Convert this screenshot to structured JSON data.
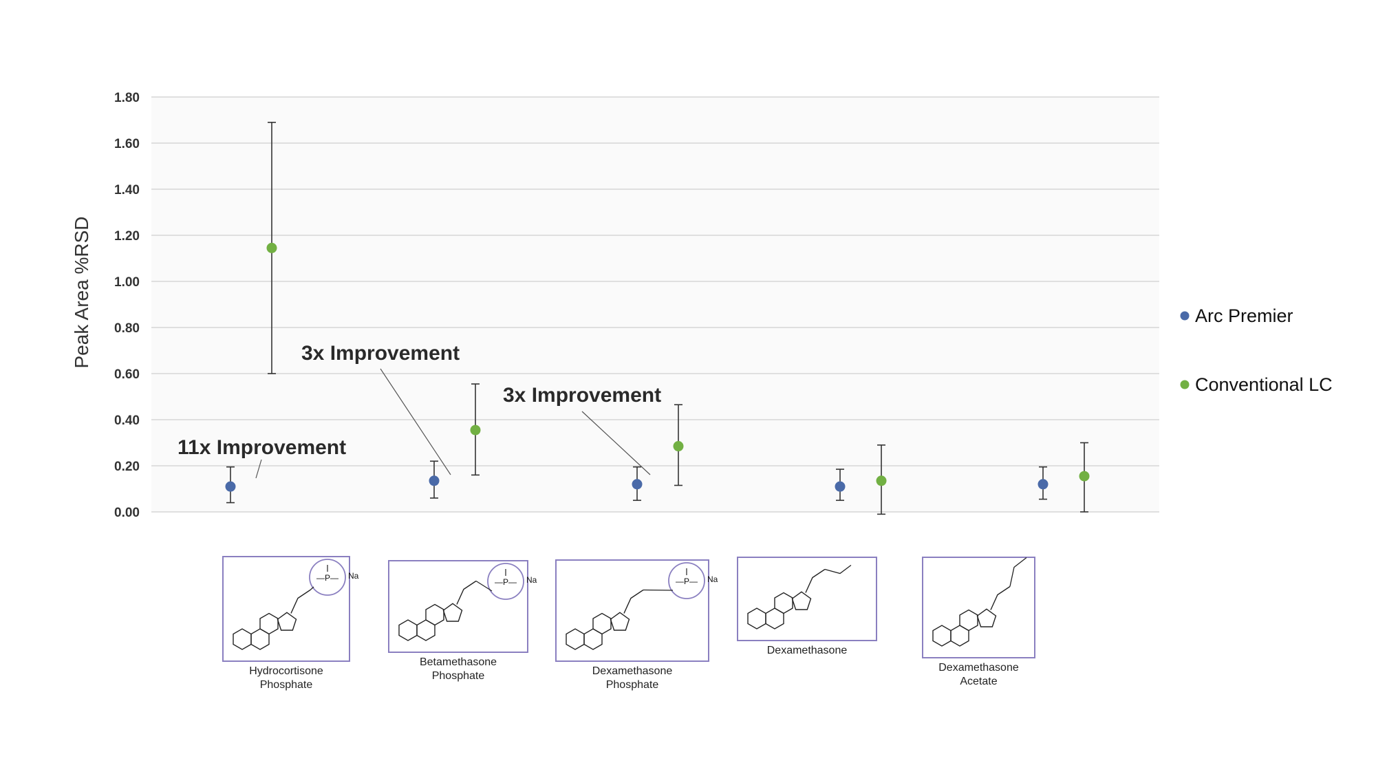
{
  "chart_data": {
    "type": "scatter",
    "xlabel": "",
    "ylabel": "Peak Area %RSD",
    "ylim": [
      0,
      1.8
    ],
    "yticks": [
      "0.00",
      "0.20",
      "0.40",
      "0.60",
      "0.80",
      "1.00",
      "1.20",
      "1.40",
      "1.60",
      "1.80"
    ],
    "grid": true,
    "legend_position": "right",
    "categories": [
      "Hydrocortisone Phosphate",
      "Betamethasone Phosphate",
      "Dexamethasone Phosphate",
      "Dexamethasone",
      "Dexamethasone Acetate"
    ],
    "series": [
      {
        "name": "Arc Premier",
        "color": "#4a6aa8",
        "values": [
          0.11,
          0.135,
          0.12,
          0.11,
          0.12
        ],
        "err_low": [
          0.04,
          0.06,
          0.05,
          0.05,
          0.055
        ],
        "err_high": [
          0.195,
          0.22,
          0.195,
          0.185,
          0.195
        ]
      },
      {
        "name": "Conventional LC",
        "color": "#72b043",
        "values": [
          1.145,
          0.355,
          0.285,
          0.135,
          0.155
        ],
        "err_low": [
          0.6,
          0.16,
          0.115,
          -0.01,
          0.0
        ],
        "err_high": [
          1.69,
          0.555,
          0.465,
          0.29,
          0.3
        ]
      }
    ],
    "annotations": [
      {
        "text": "11x Improvement",
        "category": 0
      },
      {
        "text": "3x Improvement",
        "category": 1
      },
      {
        "text": "3x Improvement",
        "category": 2
      }
    ],
    "structures": [
      {
        "name": "hydrocortisone-phosphate",
        "caption_lines": [
          "Hydrocortisone",
          "Phosphate"
        ],
        "substituent": "phosphate",
        "counterion": "Na"
      },
      {
        "name": "betamethasone-phosphate",
        "caption_lines": [
          "Betamethasone",
          "Phosphate"
        ],
        "substituent": "phosphate",
        "counterion": "Na"
      },
      {
        "name": "dexamethasone-phosphate",
        "caption_lines": [
          "Dexamethasone",
          "Phosphate"
        ],
        "substituent": "phosphate",
        "counterion": "Na"
      },
      {
        "name": "dexamethasone",
        "caption_lines": [
          "Dexamethasone"
        ],
        "substituent": "hydroxyl",
        "counterion": ""
      },
      {
        "name": "dexamethasone-acetate",
        "caption_lines": [
          "Dexamethasone",
          "Acetate"
        ],
        "substituent": "acetate",
        "counterion": ""
      }
    ]
  }
}
